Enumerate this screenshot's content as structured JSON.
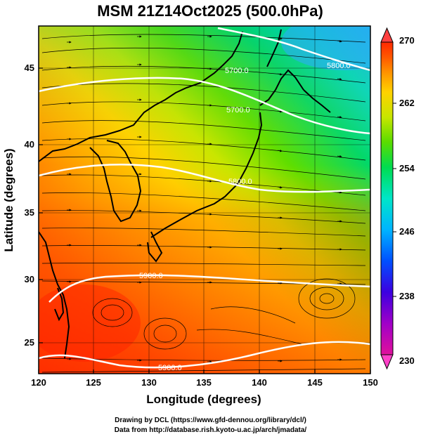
{
  "title": "MSM 21Z14Oct2025 (500.0hPa)",
  "xlabel": "Longitude (degrees)",
  "ylabel": "Latitude  (degrees)",
  "x_ticks": [
    "120",
    "125",
    "130",
    "135",
    "140",
    "145",
    "150"
  ],
  "y_ticks": [
    "25",
    "30",
    "35",
    "40",
    "45"
  ],
  "colorbar": {
    "ticks": [
      "270",
      "262",
      "254",
      "246",
      "238",
      "230"
    ],
    "range": [
      230,
      270
    ],
    "colors": [
      "#e0109c",
      "#a000c8",
      "#3c00e0",
      "#0050ff",
      "#00b4ff",
      "#00e6c8",
      "#00dc50",
      "#5adc00",
      "#c8e600",
      "#ffd200",
      "#ff9600",
      "#ff5a00",
      "#ff2800"
    ]
  },
  "contour_labels": [
    "5700.0",
    "5800.0",
    "5700.0",
    "5800.0",
    "5900.0",
    "5900.0"
  ],
  "credits": {
    "line1": "Drawing by DCL (https://www.gfd-dennou.org/library/dcl/)",
    "line2": "Data from http://database.rish.kyoto-u.ac.jp/arch/jmadata/"
  },
  "chart_data": {
    "type": "heatmap",
    "field": "temperature at 500 hPa (K), geopotential height contours (m), wind streamlines",
    "xlim": [
      120,
      150
    ],
    "ylim": [
      22.4,
      47.6
    ],
    "contour_levels": [
      5600,
      5700,
      5800,
      5900
    ],
    "colorbar_range": [
      230,
      270
    ]
  }
}
